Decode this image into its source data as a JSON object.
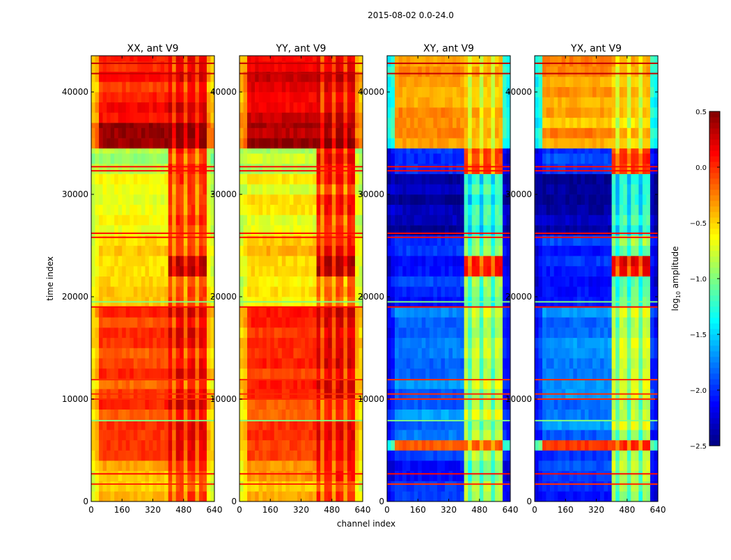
{
  "chart_data": {
    "type": "heatmap",
    "title": "2015-08-02 0.0-24.0",
    "xlabel": "channel index",
    "ylabel": "time index",
    "xlim": [
      0,
      640
    ],
    "ylim": [
      0,
      43540
    ],
    "xticks": [
      "0",
      "160",
      "320",
      "480",
      "640"
    ],
    "yticks": [
      "0",
      "10000",
      "20000",
      "30000",
      "40000"
    ],
    "colorbar": {
      "label": "log10 amplitude",
      "colormap": "jet",
      "range": [
        -2.5,
        0.5
      ],
      "ticks": [
        "0.5",
        "0.0",
        "−0.5",
        "−1.0",
        "−1.5",
        "−2.0",
        "−2.5"
      ]
    },
    "rfi_channel_range": [
      400,
      600
    ],
    "panels": [
      {
        "title": "XX, ant V9",
        "edge_value": -0.8,
        "segments": [
          {
            "t": [
              0,
              4000
            ],
            "base": -0.45,
            "rfi": -0.1
          },
          {
            "t": [
              4000,
              19000
            ],
            "base": -0.08,
            "rfi": 0.1
          },
          {
            "t": [
              19000,
              22000
            ],
            "base": -0.55,
            "rfi": -0.2
          },
          {
            "t": [
              22000,
              24000
            ],
            "base": -0.55,
            "rfi": 0.3
          },
          {
            "t": [
              24000,
              26000
            ],
            "base": -0.5,
            "rfi": -0.1
          },
          {
            "t": [
              26000,
              32000
            ],
            "base": -0.7,
            "rfi": -0.1
          },
          {
            "t": [
              32000,
              34500
            ],
            "base": -0.85,
            "rfi": 0.0
          },
          {
            "t": [
              34500,
              37000
            ],
            "base": 0.35,
            "rfi": 0.35
          },
          {
            "t": [
              37000,
              43540
            ],
            "base": 0.05,
            "rfi": 0.15
          }
        ]
      },
      {
        "title": "YY, ant V9",
        "edge_value": -0.8,
        "segments": [
          {
            "t": [
              0,
              4000
            ],
            "base": -0.4,
            "rfi": -0.05
          },
          {
            "t": [
              4000,
              19000
            ],
            "base": -0.05,
            "rfi": 0.12
          },
          {
            "t": [
              19000,
              22000
            ],
            "base": -0.5,
            "rfi": -0.1
          },
          {
            "t": [
              22000,
              24000
            ],
            "base": -0.5,
            "rfi": 0.35
          },
          {
            "t": [
              24000,
              26000
            ],
            "base": -0.5,
            "rfi": 0.0
          },
          {
            "t": [
              26000,
              32000
            ],
            "base": -0.65,
            "rfi": 0.0
          },
          {
            "t": [
              32000,
              34500
            ],
            "base": -0.85,
            "rfi": 0.1
          },
          {
            "t": [
              34500,
              37000
            ],
            "base": 0.35,
            "rfi": 0.35
          },
          {
            "t": [
              37000,
              43540
            ],
            "base": 0.2,
            "rfi": 0.2
          }
        ]
      },
      {
        "title": "XY, ant V9",
        "edge_value": -2.2,
        "segments": [
          {
            "t": [
              0,
              5000
            ],
            "base": -2.0,
            "rfi": -0.9
          },
          {
            "t": [
              5000,
              6000
            ],
            "base": -0.1,
            "rfi": -0.1
          },
          {
            "t": [
              6000,
              19000
            ],
            "base": -1.75,
            "rfi": -0.8
          },
          {
            "t": [
              19000,
              22000
            ],
            "base": -2.0,
            "rfi": -1.0
          },
          {
            "t": [
              22000,
              24000
            ],
            "base": -2.0,
            "rfi": 0.15
          },
          {
            "t": [
              24000,
              26000
            ],
            "base": -2.0,
            "rfi": -1.0
          },
          {
            "t": [
              26000,
              32000
            ],
            "base": -2.35,
            "rfi": -1.2
          },
          {
            "t": [
              32000,
              34500
            ],
            "base": -1.9,
            "rfi": 0.0
          },
          {
            "t": [
              34500,
              43540
            ],
            "base": -0.35,
            "rfi": -0.5
          }
        ]
      },
      {
        "title": "YX, ant V9",
        "edge_value": -2.2,
        "segments": [
          {
            "t": [
              0,
              5000
            ],
            "base": -2.0,
            "rfi": -0.9
          },
          {
            "t": [
              5000,
              6000
            ],
            "base": -0.1,
            "rfi": -0.1
          },
          {
            "t": [
              6000,
              19000
            ],
            "base": -1.75,
            "rfi": -0.8
          },
          {
            "t": [
              19000,
              22000
            ],
            "base": -2.0,
            "rfi": -1.0
          },
          {
            "t": [
              22000,
              24000
            ],
            "base": -2.0,
            "rfi": 0.15
          },
          {
            "t": [
              24000,
              26000
            ],
            "base": -2.0,
            "rfi": -1.0
          },
          {
            "t": [
              26000,
              32000
            ],
            "base": -2.35,
            "rfi": -1.2
          },
          {
            "t": [
              32000,
              34500
            ],
            "base": -1.9,
            "rfi": 0.0
          },
          {
            "t": [
              34500,
              43540
            ],
            "base": -0.35,
            "rfi": -0.5
          }
        ]
      }
    ],
    "stripes": [
      {
        "t": 1700,
        "value": 0.0
      },
      {
        "t": 2700,
        "value": 0.1
      },
      {
        "t": 7900,
        "value": -1.0
      },
      {
        "t": 10000,
        "value": 0.0
      },
      {
        "t": 10500,
        "value": 0.0
      },
      {
        "t": 11900,
        "value": 0.0
      },
      {
        "t": 19000,
        "value": 0.1
      },
      {
        "t": 19500,
        "value": -1.0
      },
      {
        "t": 25800,
        "value": 0.1
      },
      {
        "t": 26200,
        "value": 0.1
      },
      {
        "t": 32300,
        "value": 0.1
      },
      {
        "t": 32700,
        "value": 0.1
      },
      {
        "t": 41800,
        "value": 0.3
      },
      {
        "t": 42800,
        "value": 0.3
      }
    ]
  }
}
